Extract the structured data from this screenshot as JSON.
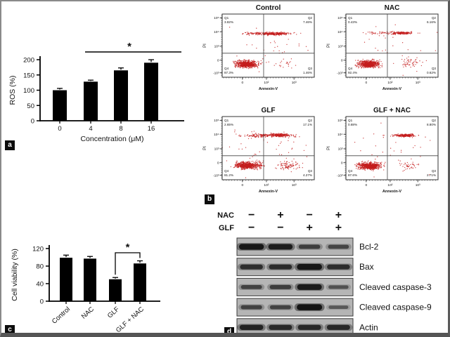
{
  "figure": {
    "panels": {
      "a": {
        "label": "a"
      },
      "b": {
        "label": "b"
      },
      "c": {
        "label": "c"
      },
      "d": {
        "label": "d"
      }
    }
  },
  "colors": {
    "bar": "#000000",
    "dot": "#c41e1e",
    "axis": "#000000",
    "blot_strip_bg": "#b5b5b5",
    "blot_strip_border": "#3a3a3a",
    "band": "#141414",
    "panel_label_bg": "#0d0d0d",
    "panel_label_fg": "#ffffff"
  },
  "chart_data": [
    {
      "id": "ros_bar",
      "panel": "a",
      "type": "bar",
      "title": "",
      "categories": [
        "0",
        "4",
        "8",
        "16"
      ],
      "values": [
        100,
        128,
        165,
        190
      ],
      "errors": [
        6,
        5,
        8,
        10
      ],
      "xlabel": "Concentration (μM)",
      "ylabel": "ROS (%)",
      "yticks": [
        0,
        50,
        100,
        150,
        200
      ],
      "ylim": [
        0,
        200
      ],
      "grid": false,
      "significance": {
        "symbol": "*",
        "from_category": "4",
        "to_category": "16",
        "style": "line"
      }
    },
    {
      "id": "flow_cytometry",
      "panel": "b",
      "type": "scatter",
      "xlabel": "Annexin-V",
      "ylabel": "PI",
      "xticks": [
        "0",
        "10²",
        "10³"
      ],
      "yticks": [
        "10⁵",
        "10⁴",
        "10³",
        "0",
        "-10³"
      ],
      "plots": [
        {
          "title": "Control",
          "quadrants": {
            "Q1": "3.82%",
            "Q2": "7.46%",
            "Q3": "1.46%",
            "Q4": "87.3%"
          },
          "clusters": [
            {
              "x": 0.27,
              "y": 0.79,
              "sx": 0.11,
              "sy": 0.05,
              "n": 450
            },
            {
              "x": 0.27,
              "y": 0.8,
              "sx": 0.055,
              "sy": 0.028,
              "n": 330
            },
            {
              "x": 0.5,
              "y": 0.31,
              "sx": 0.23,
              "sy": 0.022,
              "n": 210
            },
            {
              "x": 0.58,
              "y": 0.31,
              "sx": 0.1,
              "sy": 0.017,
              "n": 110
            },
            {
              "x": 0.72,
              "y": 0.78,
              "sx": 0.1,
              "sy": 0.06,
              "n": 18
            },
            {
              "x": 0.5,
              "y": 0.55,
              "sx": 0.4,
              "sy": 0.33,
              "n": 35
            }
          ]
        },
        {
          "title": "NAC",
          "quadrants": {
            "Q1": "0.43%",
            "Q2": "6.16%",
            "Q3": "0.62%",
            "Q4": "92.4%"
          },
          "clusters": [
            {
              "x": 0.25,
              "y": 0.79,
              "sx": 0.1,
              "sy": 0.05,
              "n": 480
            },
            {
              "x": 0.25,
              "y": 0.8,
              "sx": 0.05,
              "sy": 0.028,
              "n": 360
            },
            {
              "x": 0.58,
              "y": 0.3,
              "sx": 0.15,
              "sy": 0.02,
              "n": 110
            },
            {
              "x": 0.62,
              "y": 0.3,
              "sx": 0.07,
              "sy": 0.016,
              "n": 70
            },
            {
              "x": 0.33,
              "y": 0.3,
              "sx": 0.13,
              "sy": 0.02,
              "n": 30
            },
            {
              "x": 0.7,
              "y": 0.77,
              "sx": 0.09,
              "sy": 0.06,
              "n": 50
            },
            {
              "x": 0.5,
              "y": 0.55,
              "sx": 0.4,
              "sy": 0.33,
              "n": 30
            }
          ]
        },
        {
          "title": "GLF",
          "quadrants": {
            "Q1": "2.65%",
            "Q2": "17.1%",
            "Q3": "4.27%",
            "Q4": "81.2%"
          },
          "clusters": [
            {
              "x": 0.28,
              "y": 0.77,
              "sx": 0.13,
              "sy": 0.05,
              "n": 440
            },
            {
              "x": 0.26,
              "y": 0.78,
              "sx": 0.06,
              "sy": 0.03,
              "n": 330
            },
            {
              "x": 0.52,
              "y": 0.3,
              "sx": 0.24,
              "sy": 0.025,
              "n": 230
            },
            {
              "x": 0.62,
              "y": 0.29,
              "sx": 0.09,
              "sy": 0.02,
              "n": 120
            },
            {
              "x": 0.72,
              "y": 0.78,
              "sx": 0.1,
              "sy": 0.06,
              "n": 85
            },
            {
              "x": 0.5,
              "y": 0.55,
              "sx": 0.42,
              "sy": 0.35,
              "n": 50
            }
          ]
        },
        {
          "title": "GLF + NAC",
          "quadrants": {
            "Q1": "0.88%",
            "Q2": "8.80%",
            "Q3": "2.71%",
            "Q4": "87.6%"
          },
          "clusters": [
            {
              "x": 0.26,
              "y": 0.78,
              "sx": 0.11,
              "sy": 0.05,
              "n": 470
            },
            {
              "x": 0.26,
              "y": 0.79,
              "sx": 0.055,
              "sy": 0.028,
              "n": 350
            },
            {
              "x": 0.63,
              "y": 0.3,
              "sx": 0.12,
              "sy": 0.02,
              "n": 150
            },
            {
              "x": 0.65,
              "y": 0.3,
              "sx": 0.06,
              "sy": 0.016,
              "n": 80
            },
            {
              "x": 0.7,
              "y": 0.78,
              "sx": 0.1,
              "sy": 0.06,
              "n": 40
            },
            {
              "x": 0.5,
              "y": 0.55,
              "sx": 0.4,
              "sy": 0.33,
              "n": 35
            }
          ]
        }
      ]
    },
    {
      "id": "viability_bar",
      "panel": "c",
      "type": "bar",
      "title": "",
      "categories": [
        "Control",
        "NAC",
        "GLF",
        "GLF + NAC"
      ],
      "values": [
        99,
        97,
        50,
        86
      ],
      "errors": [
        6,
        5,
        4,
        6
      ],
      "xlabel": "",
      "ylabel": "Cell viability (%)",
      "yticks": [
        0,
        40,
        80,
        120
      ],
      "ylim": [
        0,
        120
      ],
      "grid": false,
      "significance": {
        "symbol": "*",
        "from_category": "GLF",
        "to_category": "GLF + NAC",
        "style": "bracket"
      }
    },
    {
      "id": "western_blot",
      "panel": "d",
      "type": "table",
      "condition_rows": [
        {
          "label": "NAC",
          "signs": [
            "-",
            "+",
            "-",
            "+"
          ]
        },
        {
          "label": "GLF",
          "signs": [
            "-",
            "-",
            "+",
            "+"
          ]
        }
      ],
      "bands": [
        {
          "label": "Bcl-2",
          "intensities": [
            0.95,
            0.88,
            0.55,
            0.48
          ]
        },
        {
          "label": "Bax",
          "intensities": [
            0.7,
            0.72,
            0.97,
            0.7
          ]
        },
        {
          "label": "Cleaved caspase-3",
          "intensities": [
            0.5,
            0.55,
            0.92,
            0.38
          ]
        },
        {
          "label": "Cleaved caspase-9",
          "intensities": [
            0.52,
            0.5,
            1.0,
            0.33
          ]
        },
        {
          "label": "Actin",
          "intensities": [
            0.8,
            0.75,
            0.75,
            0.75
          ]
        }
      ]
    }
  ]
}
